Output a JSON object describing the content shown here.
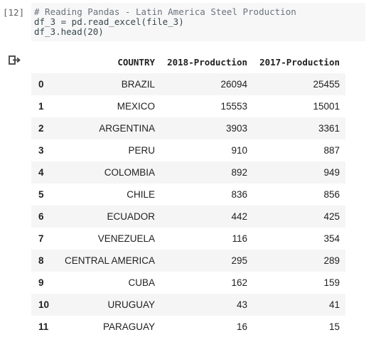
{
  "cell": {
    "execution_count": "[12]",
    "code_lines": [
      "# Reading Pandas - Latin America Steel Production",
      "df_3 = pd.read_excel(file_3)",
      "df_3.head(20)"
    ]
  },
  "output": {
    "icon": "output-redirect-icon",
    "table": {
      "headers": [
        "",
        "COUNTRY",
        "2018-Production",
        "2017-Production"
      ],
      "rows": [
        [
          "0",
          "BRAZIL",
          "26094",
          "25455"
        ],
        [
          "1",
          "MEXICO",
          "15553",
          "15001"
        ],
        [
          "2",
          "ARGENTINA",
          "3903",
          "3361"
        ],
        [
          "3",
          "PERU",
          "910",
          "887"
        ],
        [
          "4",
          "COLOMBIA",
          "892",
          "949"
        ],
        [
          "5",
          "CHILE",
          "836",
          "856"
        ],
        [
          "6",
          "ECUADOR",
          "442",
          "425"
        ],
        [
          "7",
          "VENEZUELA",
          "116",
          "354"
        ],
        [
          "8",
          "CENTRAL AMERICA",
          "295",
          "289"
        ],
        [
          "9",
          "CUBA",
          "162",
          "159"
        ],
        [
          "10",
          "URUGUAY",
          "43",
          "41"
        ],
        [
          "11",
          "PARAGUAY",
          "16",
          "15"
        ]
      ]
    }
  }
}
